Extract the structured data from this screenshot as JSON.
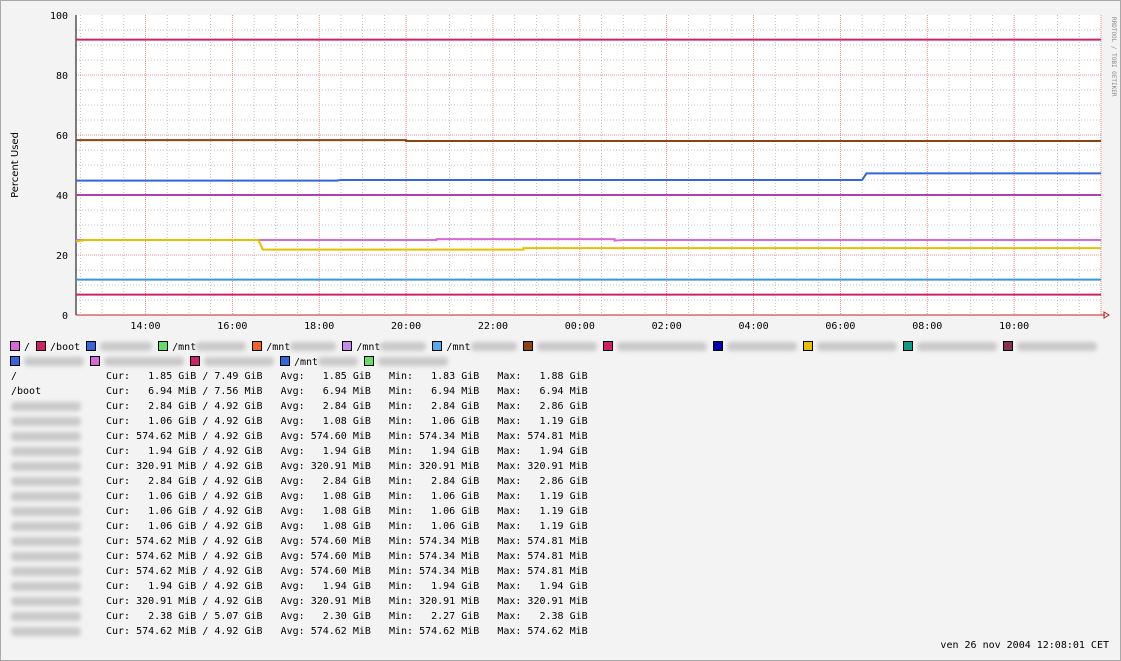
{
  "chart_data": {
    "type": "line",
    "ylabel": "Percent Used",
    "xlabel": "",
    "ylim": [
      0,
      100
    ],
    "y_ticks": [
      "0",
      "20",
      "40",
      "60",
      "80",
      "100"
    ],
    "x_ticks": [
      "14:00",
      "16:00",
      "18:00",
      "20:00",
      "22:00",
      "00:00",
      "02:00",
      "04:00",
      "06:00",
      "08:00",
      "10:00"
    ],
    "grid": true,
    "watermark": "RRDTOOL / TOBI OETIKER",
    "series": [
      {
        "name": "/",
        "color": "#d868d8",
        "points": [
          [
            12.4,
            25.0
          ],
          [
            20.7,
            25.0
          ],
          [
            20.7,
            25.3
          ],
          [
            24.8,
            25.3
          ],
          [
            24.8,
            24.8
          ],
          [
            25.0,
            25.0
          ],
          [
            36.0,
            25.0
          ]
        ]
      },
      {
        "name": "/boot",
        "color": "#cc2266",
        "points": [
          [
            12.4,
            91.8
          ],
          [
            36.0,
            91.8
          ]
        ]
      },
      {
        "name": "",
        "color": "#3366dd",
        "points": [
          [
            12.4,
            44.8
          ],
          [
            18.4,
            44.8
          ],
          [
            18.5,
            45.0
          ],
          [
            30.5,
            45.0
          ],
          [
            30.6,
            47.2
          ],
          [
            36.0,
            47.2
          ]
        ]
      },
      {
        "name": "",
        "color": "#8b4513",
        "points": [
          [
            12.4,
            58.3
          ],
          [
            20.0,
            58.3
          ],
          [
            20.0,
            58.0
          ],
          [
            36.0,
            58.0
          ]
        ]
      },
      {
        "name": "",
        "color": "#b040b0",
        "points": [
          [
            12.4,
            40.0
          ],
          [
            36.0,
            40.0
          ]
        ]
      },
      {
        "name": "",
        "color": "#e8c000",
        "points": [
          [
            12.4,
            24.5
          ],
          [
            12.6,
            25.0
          ],
          [
            16.6,
            25.0
          ],
          [
            16.7,
            21.8
          ],
          [
            22.7,
            21.8
          ],
          [
            22.7,
            22.3
          ],
          [
            36.0,
            22.3
          ]
        ]
      },
      {
        "name": "",
        "color": "#3399dd",
        "points": [
          [
            12.4,
            11.8
          ],
          [
            36.0,
            11.8
          ]
        ]
      },
      {
        "name": "",
        "color": "#cc2266",
        "points": [
          [
            12.4,
            6.8
          ],
          [
            36.0,
            6.8
          ]
        ]
      }
    ]
  },
  "legend": {
    "items": [
      {
        "label": "/",
        "color": "#d868d8",
        "blur": 0
      },
      {
        "label": "/boot",
        "color": "#cc2266",
        "blur": 0
      },
      {
        "label": "",
        "color": "#3366dd",
        "blur": 52
      },
      {
        "label": "/mnt",
        "color": "#66dd66",
        "blur": 50
      },
      {
        "label": "/mnt",
        "color": "#ee6622",
        "blur": 46
      },
      {
        "label": "/mnt",
        "color": "#c888e8",
        "blur": 46
      },
      {
        "label": "/mnt",
        "color": "#55aaee",
        "blur": 46
      },
      {
        "label": "",
        "color": "#8b4513",
        "blur": 60
      },
      {
        "label": "",
        "color": "#cc2266",
        "blur": 90
      },
      {
        "label": "",
        "color": "#0000aa",
        "blur": 70
      },
      {
        "label": "",
        "color": "#e8c000",
        "blur": 80
      },
      {
        "label": "",
        "color": "#119988",
        "blur": 80
      },
      {
        "label": "",
        "color": "#883355",
        "blur": 80
      },
      {
        "label": "",
        "color": "#3366dd",
        "blur": 60
      },
      {
        "label": "",
        "color": "#d868d8",
        "blur": 80
      },
      {
        "label": "",
        "color": "#cc2266",
        "blur": 70
      },
      {
        "label": "/mnt",
        "color": "#3366dd",
        "blur": 40
      },
      {
        "label": "",
        "color": "#66dd66",
        "blur": 70
      }
    ]
  },
  "stats": [
    {
      "name": "/",
      "cur": "  1.85 GiB",
      "total": "7.49 GiB",
      "avg": "  1.85 GiB",
      "min": "  1.83 GiB",
      "max": "  1.88 GiB"
    },
    {
      "name": "/boot",
      "cur": "  6.94 MiB",
      "total": "7.56 MiB",
      "avg": "  6.94 MiB",
      "min": "  6.94 MiB",
      "max": "  6.94 MiB"
    },
    {
      "name": "",
      "cur": "  2.84 GiB",
      "total": "4.92 GiB",
      "avg": "  2.84 GiB",
      "min": "  2.84 GiB",
      "max": "  2.86 GiB"
    },
    {
      "name": "",
      "cur": "  1.06 GiB",
      "total": "4.92 GiB",
      "avg": "  1.08 GiB",
      "min": "  1.06 GiB",
      "max": "  1.19 GiB"
    },
    {
      "name": "",
      "cur": "574.62 MiB",
      "total": "4.92 GiB",
      "avg": "574.60 MiB",
      "min": "574.34 MiB",
      "max": "574.81 MiB"
    },
    {
      "name": "",
      "cur": "  1.94 GiB",
      "total": "4.92 GiB",
      "avg": "  1.94 GiB",
      "min": "  1.94 GiB",
      "max": "  1.94 GiB"
    },
    {
      "name": "",
      "cur": "320.91 MiB",
      "total": "4.92 GiB",
      "avg": "320.91 MiB",
      "min": "320.91 MiB",
      "max": "320.91 MiB"
    },
    {
      "name": "",
      "cur": "  2.84 GiB",
      "total": "4.92 GiB",
      "avg": "  2.84 GiB",
      "min": "  2.84 GiB",
      "max": "  2.86 GiB"
    },
    {
      "name": "",
      "cur": "  1.06 GiB",
      "total": "4.92 GiB",
      "avg": "  1.08 GiB",
      "min": "  1.06 GiB",
      "max": "  1.19 GiB"
    },
    {
      "name": "",
      "cur": "  1.06 GiB",
      "total": "4.92 GiB",
      "avg": "  1.08 GiB",
      "min": "  1.06 GiB",
      "max": "  1.19 GiB"
    },
    {
      "name": "",
      "cur": "  1.06 GiB",
      "total": "4.92 GiB",
      "avg": "  1.08 GiB",
      "min": "  1.06 GiB",
      "max": "  1.19 GiB"
    },
    {
      "name": "",
      "cur": "574.62 MiB",
      "total": "4.92 GiB",
      "avg": "574.60 MiB",
      "min": "574.34 MiB",
      "max": "574.81 MiB"
    },
    {
      "name": "",
      "cur": "574.62 MiB",
      "total": "4.92 GiB",
      "avg": "574.60 MiB",
      "min": "574.34 MiB",
      "max": "574.81 MiB"
    },
    {
      "name": "",
      "cur": "574.62 MiB",
      "total": "4.92 GiB",
      "avg": "574.60 MiB",
      "min": "574.34 MiB",
      "max": "574.81 MiB"
    },
    {
      "name": "",
      "cur": "  1.94 GiB",
      "total": "4.92 GiB",
      "avg": "  1.94 GiB",
      "min": "  1.94 GiB",
      "max": "  1.94 GiB"
    },
    {
      "name": "",
      "cur": "320.91 MiB",
      "total": "4.92 GiB",
      "avg": "320.91 MiB",
      "min": "320.91 MiB",
      "max": "320.91 MiB"
    },
    {
      "name": "",
      "cur": "  2.38 GiB",
      "total": "5.07 GiB",
      "avg": "  2.30 GiB",
      "min": "  2.27 GiB",
      "max": "  2.38 GiB"
    },
    {
      "name": "",
      "cur": "574.62 MiB",
      "total": "4.92 GiB",
      "avg": "574.62 MiB",
      "min": "574.62 MiB",
      "max": "574.62 MiB"
    }
  ],
  "labels": {
    "cur": "Cur:",
    "avg": "Avg:",
    "min": "Min:",
    "max": "Max:"
  },
  "timestamp": "ven 26 nov 2004 12:08:01 CET"
}
